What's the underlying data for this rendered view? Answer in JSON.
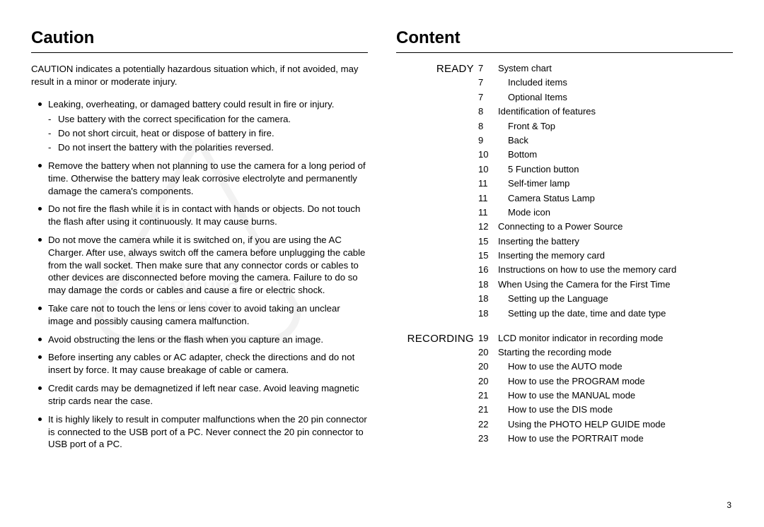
{
  "page_number": "3",
  "watermark": {
    "line1": "SAMSUNG",
    "line2": "TECHWIN",
    "stroke_color": "#888888"
  },
  "left": {
    "heading": "Caution",
    "lead": "CAUTION indicates a potentially hazardous situation which, if not avoided, may result in a minor or moderate injury.",
    "items": [
      {
        "text": "Leaking, overheating, or damaged battery could result in fire or injury.",
        "sub": [
          "Use battery with the correct specification for the camera.",
          "Do not short circuit, heat or dispose of battery in fire.",
          "Do not insert the battery with the polarities reversed."
        ]
      },
      {
        "text": "Remove the battery when not planning to use the camera for a long period of time. Otherwise the battery may leak corrosive electrolyte and permanently damage the camera's components."
      },
      {
        "text": "Do not fire the flash while it is in contact with hands or objects. Do not touch the flash after using it continuously. It may cause burns."
      },
      {
        "text": "Do not move the camera while it is switched on, if you are using the AC Charger. After use, always switch off the camera before unplugging the cable from the wall socket. Then make sure that any connector cords or cables to other devices are disconnected before moving the camera. Failure to do so may damage the cords or cables and cause a fire or electric shock."
      },
      {
        "text": "Take care not to touch the lens or lens cover to avoid taking an unclear image and possibly causing camera malfunction."
      },
      {
        "text": "Avoid obstructing the lens or the flash when you capture an image."
      },
      {
        "text": "Before inserting any cables or AC adapter, check the directions and do not insert by force. It may cause breakage of cable or camera."
      },
      {
        "text": "Credit cards may be demagnetized if left near case. Avoid leaving magnetic strip cards near the case."
      },
      {
        "text": "It is highly likely to result in computer malfunctions when the 20 pin connector is connected to the USB port of a PC. Never connect the 20 pin connector to USB port of a PC."
      }
    ]
  },
  "right": {
    "heading": "Content",
    "sections": [
      {
        "label": "READY",
        "rows": [
          {
            "page": "7",
            "title": "System chart",
            "sub": false
          },
          {
            "page": "7",
            "title": "Included items",
            "sub": true
          },
          {
            "page": "7",
            "title": "Optional Items",
            "sub": true
          },
          {
            "page": "8",
            "title": "Identification of features",
            "sub": false
          },
          {
            "page": "8",
            "title": "Front & Top",
            "sub": true
          },
          {
            "page": "9",
            "title": "Back",
            "sub": true
          },
          {
            "page": "10",
            "title": "Bottom",
            "sub": true
          },
          {
            "page": "10",
            "title": "5 Function button",
            "sub": true
          },
          {
            "page": "11",
            "title": "Self-timer lamp",
            "sub": true
          },
          {
            "page": "11",
            "title": "Camera Status Lamp",
            "sub": true
          },
          {
            "page": "11",
            "title": "Mode icon",
            "sub": true
          },
          {
            "page": "12",
            "title": "Connecting to a Power Source",
            "sub": false
          },
          {
            "page": "15",
            "title": "Inserting the battery",
            "sub": false
          },
          {
            "page": "15",
            "title": "Inserting the memory card",
            "sub": false
          },
          {
            "page": "16",
            "title": "Instructions on how to use the memory card",
            "sub": false
          },
          {
            "page": "18",
            "title": "When Using the Camera for the First Time",
            "sub": false
          },
          {
            "page": "18",
            "title": "Setting up the Language",
            "sub": true
          },
          {
            "page": "18",
            "title": "Setting up the date, time and date type",
            "sub": true
          }
        ]
      },
      {
        "label": "RECORDING",
        "rows": [
          {
            "page": "19",
            "title": "LCD monitor indicator in recording mode",
            "sub": false
          },
          {
            "page": "20",
            "title": "Starting the recording mode",
            "sub": false
          },
          {
            "page": "20",
            "title": "How to use the AUTO mode",
            "sub": true
          },
          {
            "page": "20",
            "title": "How to use the PROGRAM mode",
            "sub": true
          },
          {
            "page": "21",
            "title": "How to use the MANUAL mode",
            "sub": true
          },
          {
            "page": "21",
            "title": "How to use the DIS mode",
            "sub": true
          },
          {
            "page": "22",
            "title": "Using the PHOTO HELP GUIDE mode",
            "sub": true
          },
          {
            "page": "23",
            "title": "How to use the PORTRAIT mode",
            "sub": true
          }
        ]
      }
    ]
  }
}
